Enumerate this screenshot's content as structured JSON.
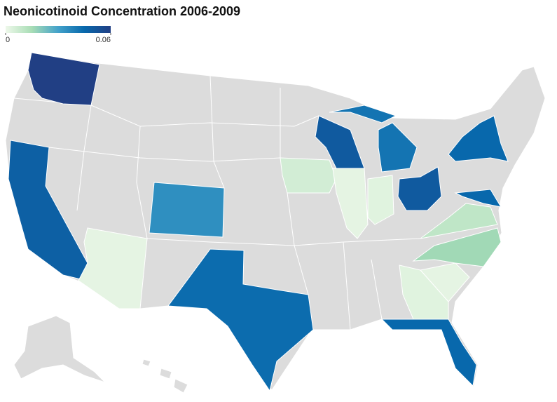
{
  "chart_data": {
    "type": "choropleth",
    "title": "Neonicotinoid Concentration 2006-2009",
    "colorbar": {
      "lim": [
        0,
        0.06
      ],
      "ticks": [
        0,
        0.06
      ],
      "colors": [
        "#eef8ea",
        "#a8ddb5",
        "#43a2ca",
        "#0868ac",
        "#213f84"
      ]
    },
    "values": [
      0.06,
      0.048,
      0.002,
      0.035,
      0.044,
      0.006,
      0.05,
      0.042,
      0.002,
      0.003,
      0.05,
      0.045,
      0.045,
      0.01,
      0.016,
      0.002,
      0.003,
      0.045
    ]
  }
}
